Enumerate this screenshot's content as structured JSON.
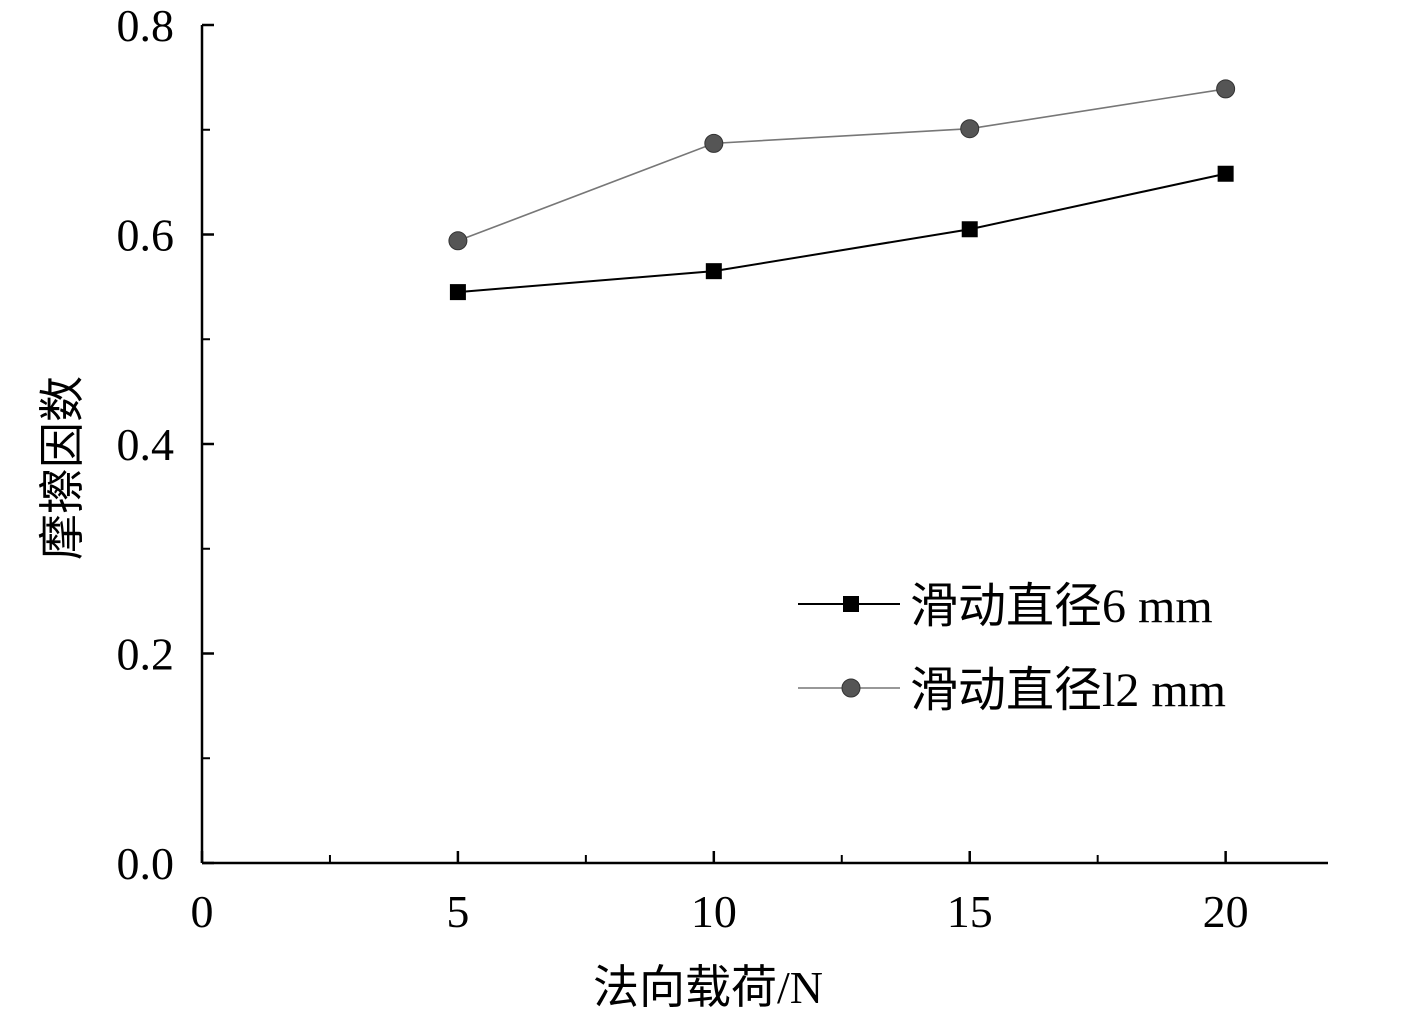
{
  "chart_data": {
    "type": "line",
    "title": "",
    "xlabel": "法向载荷/N",
    "ylabel": "摩擦因数",
    "xlim": [
      0,
      22
    ],
    "ylim": [
      0,
      0.8
    ],
    "x_ticks": [
      0,
      5,
      10,
      15,
      20
    ],
    "x_tick_labels": [
      "0",
      "5",
      "10",
      "15",
      "20"
    ],
    "x_minor_ticks": [
      2.5,
      7.5,
      12.5,
      17.5
    ],
    "y_ticks": [
      0,
      0.2,
      0.4,
      0.6,
      0.8
    ],
    "y_tick_labels": [
      "0.0",
      "0.2",
      "0.4",
      "0.6",
      "0.8"
    ],
    "y_minor_ticks": [
      0.1,
      0.3,
      0.5,
      0.7
    ],
    "grid": false,
    "legend_position": "right",
    "x": [
      5,
      10,
      15,
      20
    ],
    "series": [
      {
        "name": "滑动直径6 mm",
        "values": [
          0.545,
          0.565,
          0.605,
          0.658
        ],
        "marker": "square",
        "color": "#000000",
        "line_color": "#000000"
      },
      {
        "name": "滑动直径l2 mm",
        "values": [
          0.594,
          0.687,
          0.701,
          0.739
        ],
        "marker": "circle",
        "color": "#555555",
        "line_color": "#777777"
      }
    ]
  }
}
